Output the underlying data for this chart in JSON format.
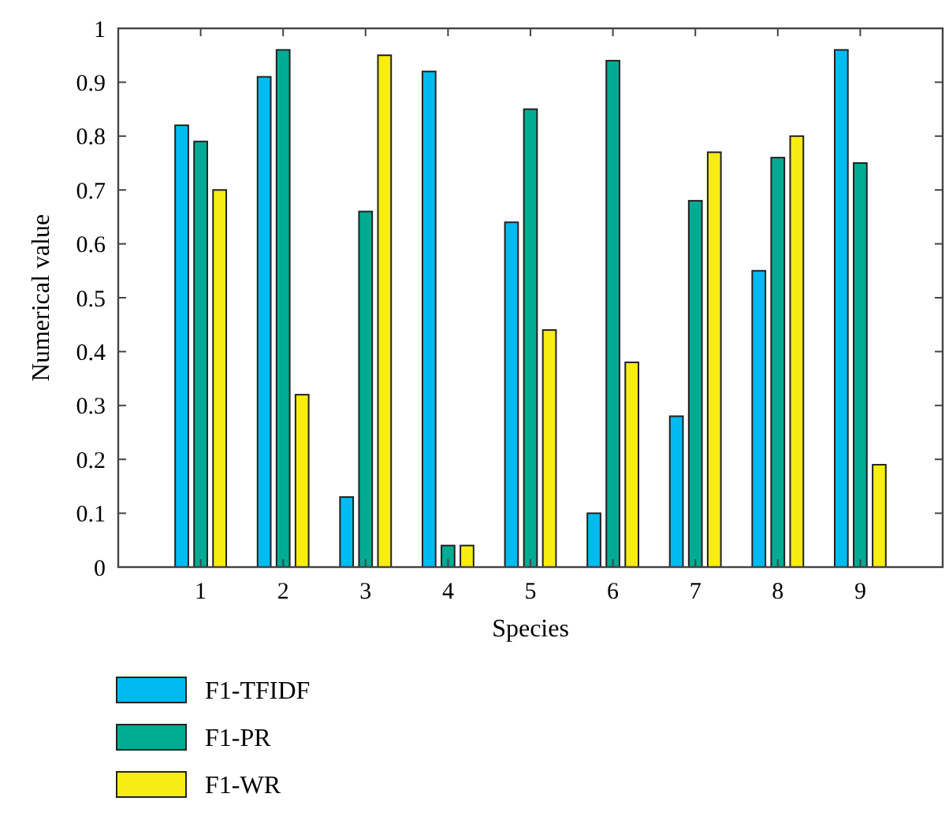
{
  "chart_data": {
    "type": "bar",
    "xlabel": "Species",
    "ylabel": "Numerical value",
    "categories": [
      "1",
      "2",
      "3",
      "4",
      "5",
      "6",
      "7",
      "8",
      "9"
    ],
    "series": [
      {
        "name": "F1-TFIDF",
        "color": "#00bbef",
        "values": [
          0.82,
          0.91,
          0.13,
          0.92,
          0.64,
          0.1,
          0.28,
          0.55,
          0.96
        ]
      },
      {
        "name": "F1-PR",
        "color": "#00ab94",
        "values": [
          0.79,
          0.96,
          0.66,
          0.04,
          0.85,
          0.94,
          0.68,
          0.76,
          0.75
        ]
      },
      {
        "name": "F1-WR",
        "color": "#f7ec13",
        "values": [
          0.7,
          0.32,
          0.95,
          0.04,
          0.44,
          0.38,
          0.77,
          0.8,
          0.19
        ]
      }
    ],
    "ylim": [
      0,
      1
    ],
    "yticks": [
      0,
      0.1,
      0.2,
      0.3,
      0.4,
      0.5,
      0.6,
      0.7,
      0.8,
      0.9,
      1
    ],
    "grid": false,
    "legend": "bottom left"
  }
}
